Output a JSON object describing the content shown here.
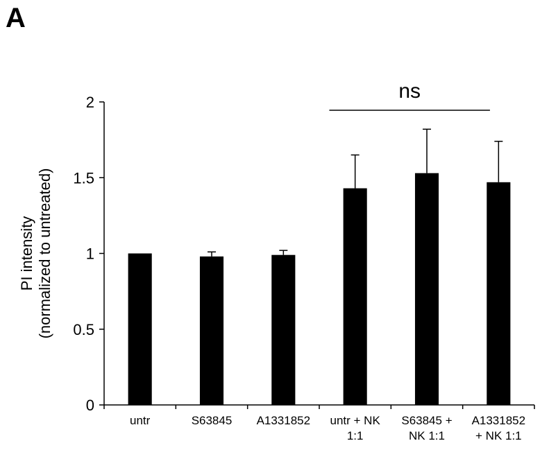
{
  "panel_label": "A",
  "chart_data": {
    "type": "bar",
    "categories": [
      [
        "untr"
      ],
      [
        "S63845"
      ],
      [
        "A1331852"
      ],
      [
        "untr + NK",
        "1:1"
      ],
      [
        "S63845 +",
        "NK 1:1"
      ],
      [
        "A1331852",
        "+ NK 1:1"
      ]
    ],
    "values": [
      1.0,
      0.98,
      0.99,
      1.43,
      1.53,
      1.47
    ],
    "errors": [
      0.0,
      0.03,
      0.03,
      0.22,
      0.29,
      0.27
    ],
    "ylabel": [
      "PI intensity",
      "(normalized to untreated)"
    ],
    "ylim": [
      0,
      2
    ],
    "yticks": [
      0,
      0.5,
      1,
      1.5,
      2
    ],
    "ytick_labels": [
      "0",
      "0.5",
      "1",
      "1.5",
      "2"
    ],
    "bar_color": "#000000",
    "grid": false,
    "legend": "none",
    "annotations": [
      {
        "text": "ns",
        "from_category": 3,
        "to_category": 5
      }
    ]
  }
}
